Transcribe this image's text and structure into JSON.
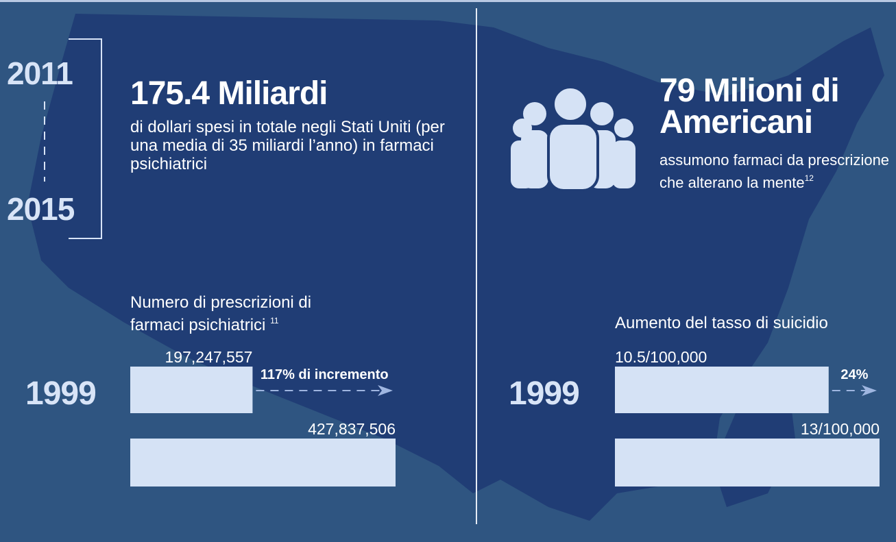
{
  "left": {
    "years": [
      "2011",
      "2015"
    ],
    "headline": "175.4 Miliardi",
    "description": "di dollari spesi in totale negli Stati Uniti (per una media di 35 miliardi l’anno) in farmaci psichiatrici",
    "chart": {
      "type": "bar",
      "title": "Numero di prescrizioni di farmaci psichiatrici",
      "title_note": "11",
      "categories": [
        "1999",
        null
      ],
      "values": [
        197247557,
        427837506
      ],
      "value_labels": [
        "197,247,557",
        "427,837,506"
      ],
      "annotation": "117% di incremento",
      "color": "#d5e2f5"
    }
  },
  "right": {
    "headline": "79 Milioni di Americani",
    "description": "assumono farmaci da prescrizione che alterano la mente",
    "description_note": "12",
    "chart": {
      "type": "bar",
      "title": "Aumento del tasso di suicidio",
      "categories": [
        "1999",
        null
      ],
      "values": [
        10.5,
        13
      ],
      "value_labels": [
        "10.5/100,000",
        "13/100,000"
      ],
      "annotation": "24%",
      "color": "#d5e2f5"
    }
  }
}
